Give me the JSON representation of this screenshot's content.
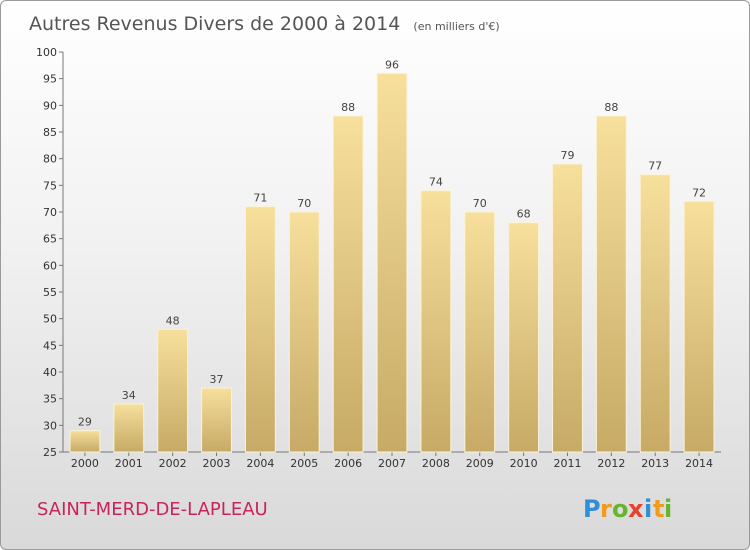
{
  "chart_data": {
    "type": "bar",
    "title": "Autres Revenus Divers de 2000 à 2014",
    "subtitle": "(en milliers d'€)",
    "categories": [
      "2000",
      "2001",
      "2002",
      "2003",
      "2004",
      "2005",
      "2006",
      "2007",
      "2008",
      "2009",
      "2010",
      "2011",
      "2012",
      "2013",
      "2014"
    ],
    "values": [
      29,
      34,
      48,
      37,
      71,
      70,
      88,
      96,
      74,
      70,
      68,
      79,
      88,
      77,
      72
    ],
    "ylim": [
      25,
      100
    ],
    "yticks": [
      25,
      30,
      35,
      40,
      45,
      50,
      55,
      60,
      65,
      70,
      75,
      80,
      85,
      90,
      95,
      100
    ],
    "grid": false,
    "legend": "none",
    "bar_color": "#e6cb82"
  },
  "footer": {
    "commune": "SAINT-MERD-DE-LAPLEAU",
    "logo_letters": [
      {
        "char": "P",
        "color": "#2e8fd6"
      },
      {
        "char": "r",
        "color": "#f29a1a"
      },
      {
        "char": "o",
        "color": "#66b530"
      },
      {
        "char": "x",
        "color": "#e8402a"
      },
      {
        "char": "i",
        "color": "#2e8fd6"
      },
      {
        "char": "t",
        "color": "#f29a1a"
      },
      {
        "char": "i",
        "color": "#66b530"
      }
    ]
  }
}
